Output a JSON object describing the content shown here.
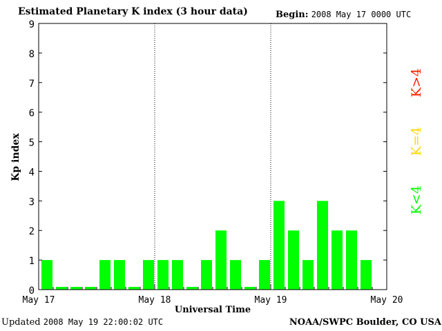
{
  "header": {
    "title": "Estimated Planetary K index (3 hour data)",
    "begin_label": "Begin:",
    "begin_value": "2008 May 17 0000 UTC"
  },
  "footer": {
    "updated_label": "Updated",
    "updated_value": "2008 May 19 22:00:02 UTC",
    "source": "NOAA/SWPC Boulder, CO USA"
  },
  "legend": [
    {
      "label": "K<4",
      "color": "#00ff00"
    },
    {
      "label": "K=4",
      "color": "#ffd700"
    },
    {
      "label": "K>4",
      "color": "#ff2200"
    }
  ],
  "chart_data": {
    "type": "bar",
    "title": "Estimated Planetary K index (3 hour data)",
    "xlabel": "Universal Time",
    "ylabel": "Kp index",
    "ylim": [
      0,
      9
    ],
    "xlim": [
      "May 17",
      "May 20"
    ],
    "x_ticks": [
      "May 17",
      "May 18",
      "May 19",
      "May 20"
    ],
    "y_ticks": [
      "0",
      "1",
      "2",
      "3",
      "4",
      "5",
      "6",
      "7",
      "8",
      "9"
    ],
    "bar_interval_hours": 3,
    "day_separators": [
      "May 18",
      "May 19"
    ],
    "grid": false,
    "values": [
      1,
      0,
      0,
      0,
      1,
      1,
      0,
      1,
      1,
      1,
      0,
      1,
      2,
      1,
      0,
      1,
      3,
      2,
      1,
      3,
      2,
      2,
      1
    ],
    "bar_color": "#00ff00"
  }
}
